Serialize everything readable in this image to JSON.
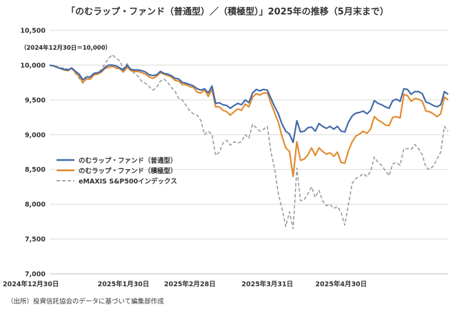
{
  "chart_data": {
    "type": "line",
    "title": "「のむラップ・ファンド（普通型）／（積極型）」2025年の推移（5月末まで）",
    "annotation": "（2024年12月30日＝10,000）",
    "source": "（出所）投資信託協会のデータに基づいて編集部作成",
    "ylim": [
      7000,
      10500
    ],
    "y_ticks": [
      "7,000",
      "7,500",
      "8,000",
      "8,500",
      "9,000",
      "9,500",
      "10,000",
      "10,500"
    ],
    "y_tick_values": [
      7000,
      7500,
      8000,
      8500,
      9000,
      9500,
      10000,
      10500
    ],
    "x_ticks": [
      "2024年12月30日",
      "2025年1月30日",
      "2025年2月28日",
      "2025年3月31日",
      "2025年4月30日"
    ],
    "x_tick_index": [
      0,
      20,
      38,
      59,
      79
    ],
    "legend_position": "center-left",
    "series": [
      {
        "name": "のむラップ・ファンド（普通型）",
        "color": "#4169a8",
        "dash": "solid",
        "values": [
          10000,
          9990,
          9970,
          9950,
          9940,
          9930,
          9960,
          9910,
          9870,
          9790,
          9830,
          9830,
          9880,
          9890,
          9910,
          9970,
          10000,
          10000,
          9990,
          9960,
          9930,
          10000,
          9940,
          9930,
          9930,
          9920,
          9900,
          9860,
          9850,
          9860,
          9910,
          9880,
          9870,
          9850,
          9810,
          9800,
          9750,
          9740,
          9720,
          9700,
          9660,
          9640,
          9660,
          9600,
          9700,
          9450,
          9460,
          9430,
          9420,
          9380,
          9420,
          9450,
          9430,
          9500,
          9460,
          9600,
          9650,
          9630,
          9650,
          9640,
          9520,
          9400,
          9300,
          9150,
          9050,
          9010,
          8890,
          9200,
          9040,
          9050,
          9100,
          9110,
          9050,
          9160,
          9120,
          9090,
          9120,
          9080,
          9120,
          9050,
          9040,
          9180,
          9270,
          9310,
          9320,
          9340,
          9300,
          9350,
          9490,
          9450,
          9430,
          9400,
          9380,
          9490,
          9510,
          9480,
          9660,
          9650,
          9580,
          9620,
          9620,
          9590,
          9470,
          9450,
          9420,
          9400,
          9430,
          9620,
          9580
        ]
      },
      {
        "name": "のむラップ・ファンド（積極型）",
        "color": "#e08b2e",
        "dash": "solid",
        "values": [
          10000,
          9990,
          9970,
          9950,
          9930,
          9920,
          9960,
          9890,
          9840,
          9750,
          9800,
          9800,
          9860,
          9870,
          9900,
          9950,
          9970,
          9980,
          9960,
          9950,
          9900,
          9970,
          9920,
          9910,
          9910,
          9890,
          9870,
          9830,
          9810,
          9840,
          9890,
          9870,
          9850,
          9830,
          9780,
          9770,
          9720,
          9720,
          9690,
          9680,
          9610,
          9600,
          9640,
          9550,
          9650,
          9400,
          9400,
          9350,
          9330,
          9280,
          9330,
          9370,
          9350,
          9440,
          9400,
          9540,
          9590,
          9570,
          9600,
          9600,
          9450,
          9310,
          9180,
          8970,
          8810,
          8760,
          8400,
          8900,
          8630,
          8650,
          8710,
          8810,
          8700,
          8810,
          8760,
          8720,
          8740,
          8690,
          8750,
          8600,
          8590,
          8770,
          8900,
          8980,
          9010,
          9050,
          9020,
          9080,
          9260,
          9210,
          9180,
          9140,
          9130,
          9250,
          9260,
          9240,
          9580,
          9560,
          9480,
          9520,
          9510,
          9480,
          9340,
          9330,
          9300,
          9260,
          9300,
          9540,
          9500
        ]
      },
      {
        "name": "eMAXIS S&P500インデックス",
        "color": "#999999",
        "dash": "dashed",
        "values": [
          10000,
          9990,
          9980,
          9960,
          9960,
          9940,
          9950,
          9880,
          9810,
          9740,
          9820,
          9800,
          9900,
          9880,
          9940,
          10020,
          10100,
          10150,
          10100,
          10060,
          9950,
          10020,
          9930,
          9880,
          9840,
          9760,
          9740,
          9690,
          9640,
          9680,
          9770,
          9800,
          9750,
          9680,
          9620,
          9520,
          9500,
          9420,
          9340,
          9300,
          9280,
          9200,
          9000,
          9050,
          9000,
          8700,
          8750,
          8880,
          8920,
          8850,
          8900,
          8880,
          8900,
          9000,
          8950,
          9150,
          9100,
          9050,
          9080,
          9120,
          8750,
          8500,
          8150,
          7930,
          7680,
          7890,
          7650,
          8520,
          8050,
          8070,
          8150,
          8250,
          8100,
          8200,
          8050,
          7980,
          8000,
          7940,
          7970,
          7880,
          7700,
          8000,
          8300,
          8370,
          8400,
          8440,
          8400,
          8470,
          8680,
          8600,
          8560,
          8480,
          8410,
          8580,
          8600,
          8560,
          8800,
          8800,
          8790,
          8860,
          8800,
          8710,
          8530,
          8500,
          8550,
          8650,
          8750,
          9120,
          9050
        ]
      }
    ]
  }
}
